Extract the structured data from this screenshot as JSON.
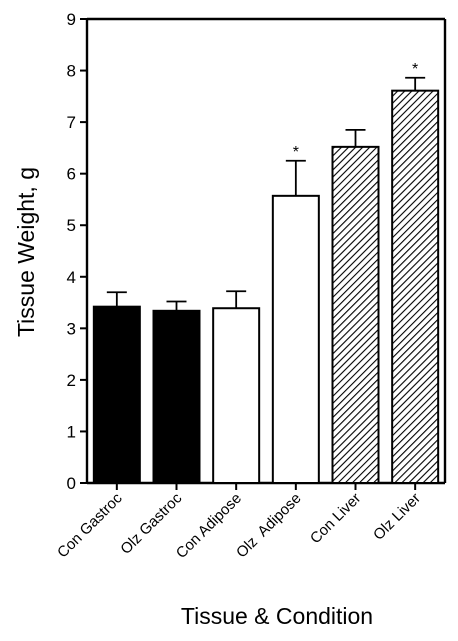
{
  "chart_data": {
    "type": "bar",
    "title": "",
    "xlabel": "Tissue & Condition",
    "ylabel": "Tissue Weight, g",
    "ylim": [
      0,
      9
    ],
    "yticks": [
      0,
      1,
      2,
      3,
      4,
      5,
      6,
      7,
      8,
      9
    ],
    "categories": [
      "Con Gastroc",
      "Olz Gastroc",
      "Con Adipose",
      "Olz  Adipose",
      "Con Liver",
      "Olz Liver"
    ],
    "values": [
      3.42,
      3.34,
      3.39,
      5.57,
      6.52,
      7.61
    ],
    "errors": [
      0.28,
      0.18,
      0.33,
      0.68,
      0.33,
      0.25
    ],
    "significance": [
      "",
      "",
      "",
      "*",
      "",
      "*"
    ],
    "fills": [
      "solid",
      "solid",
      "open",
      "open",
      "hatched",
      "hatched"
    ],
    "colors": {
      "solid": "#000000",
      "open": "#ffffff",
      "hatch_line": "#000000",
      "axis": "#000000"
    },
    "grid": false,
    "legend": "none"
  }
}
